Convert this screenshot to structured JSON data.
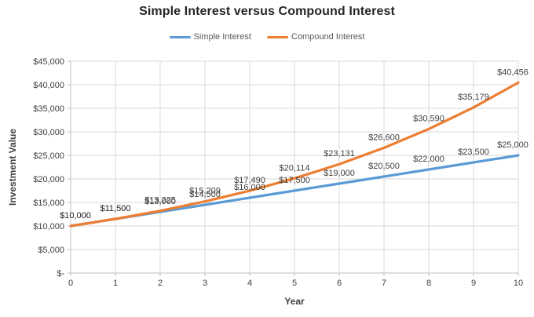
{
  "chart_data": {
    "type": "line",
    "title": "Simple Interest versus Compound Interest",
    "xlabel": "Year",
    "ylabel": "Investment Value",
    "x": [
      0,
      1,
      2,
      3,
      4,
      5,
      6,
      7,
      8,
      9,
      10
    ],
    "x_tick_labels": [
      "0",
      "1",
      "2",
      "3",
      "4",
      "5",
      "6",
      "7",
      "8",
      "9",
      "10"
    ],
    "y_tick_labels": [
      "$-",
      "$5,000",
      "$10,000",
      "$15,000",
      "$20,000",
      "$25,000",
      "$30,000",
      "$35,000",
      "$40,000",
      "$45,000"
    ],
    "ylim": [
      0,
      45000
    ],
    "y_tick_step": 5000,
    "grid": true,
    "legend_position": "top",
    "series": [
      {
        "name": "Simple Interest",
        "color": "#5B9BD5",
        "values": [
          10000,
          11500,
          13000,
          14500,
          16000,
          17500,
          19000,
          20500,
          22000,
          23500,
          25000
        ],
        "labels": [
          "$10,000",
          "$11,500",
          "$13,000",
          "$14,500",
          "$16,000",
          "$17,500",
          "$19,000",
          "$20,500",
          "$22,000",
          "$23,500",
          "$25,000"
        ]
      },
      {
        "name": "Compound Interest",
        "color": "#ED7D31",
        "values": [
          10000,
          11500,
          13225,
          15209,
          17490,
          20114,
          23131,
          26600,
          30590,
          35179,
          40456
        ],
        "labels": [
          "$10,000",
          "$11,500",
          "$13,225",
          "$15,209",
          "$17,490",
          "$20,114",
          "$23,131",
          "$26,600",
          "$30,590",
          "$35,179",
          "$40,456"
        ]
      }
    ]
  },
  "colors": {
    "grid": "#d9d9d9",
    "axis": "#bfbfbf",
    "tick_label": "#404040",
    "data_label": "#3f3f3f",
    "title": "#262626",
    "legend_text": "#595959"
  }
}
